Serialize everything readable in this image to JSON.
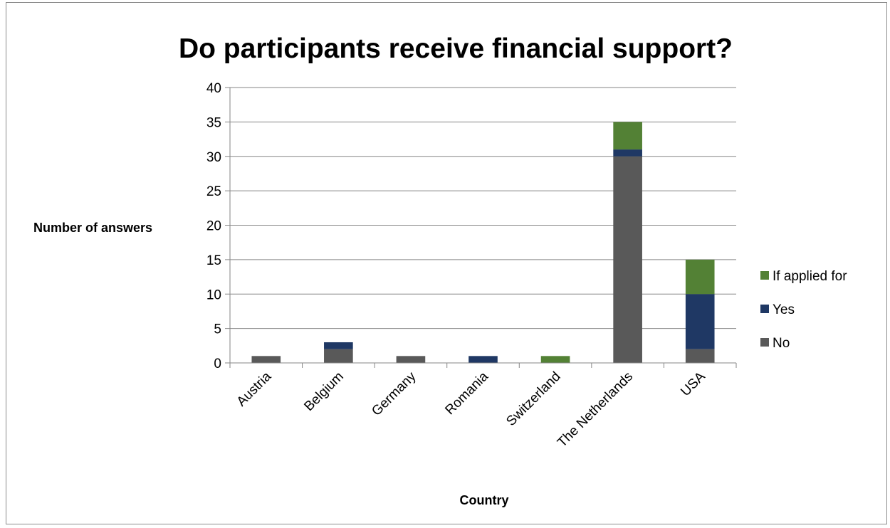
{
  "chart_data": {
    "type": "bar",
    "stacked": true,
    "title": "Do participants receive financial support?",
    "xlabel": "Country",
    "ylabel": "Number of answers",
    "ylim": [
      0,
      40
    ],
    "yticks": [
      0,
      5,
      10,
      15,
      20,
      25,
      30,
      35,
      40
    ],
    "grid": true,
    "legend_position": "right",
    "categories": [
      "Austria",
      "Belgium",
      "Germany",
      "Romania",
      "Switzerland",
      "The Netherlands",
      "USA"
    ],
    "series": [
      {
        "name": "No",
        "color": "#595959",
        "values": [
          1,
          2,
          1,
          0,
          0,
          30,
          2
        ]
      },
      {
        "name": "Yes",
        "color": "#1f3864",
        "values": [
          0,
          1,
          0,
          1,
          0,
          1,
          8
        ]
      },
      {
        "name": "If applied for",
        "color": "#538135",
        "values": [
          0,
          0,
          0,
          0,
          1,
          4,
          5
        ]
      }
    ]
  }
}
